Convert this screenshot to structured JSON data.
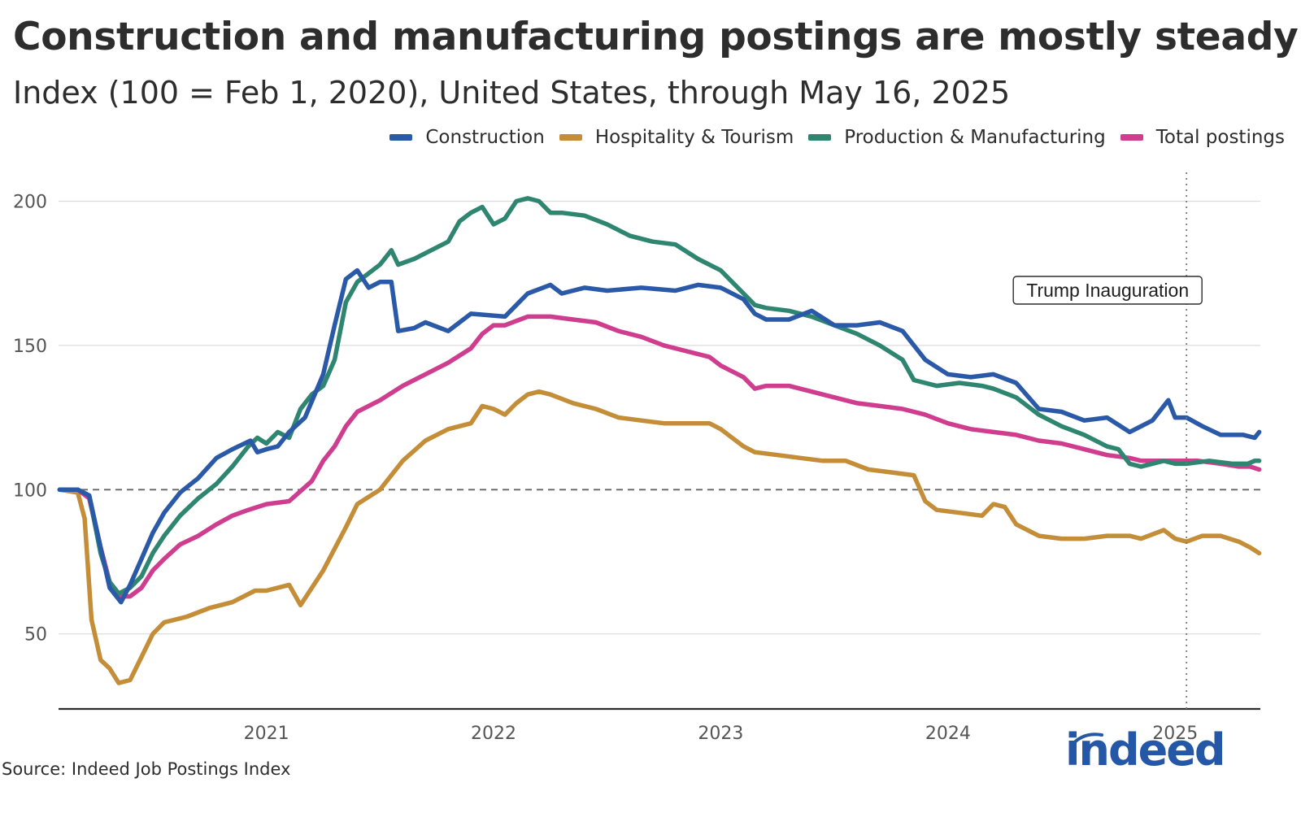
{
  "title": "Construction and manufacturing postings are mostly steady",
  "subtitle": "Index (100 = Feb 1, 2020), United States, through May 16, 2025",
  "source": "Source: Indeed Job Postings Index",
  "logo_text": "indeed",
  "chart_data": {
    "type": "line",
    "title": "Construction and manufacturing postings are mostly steady",
    "xlabel": "",
    "ylabel": "",
    "xlim": [
      2020.085,
      2025.375
    ],
    "ylim": [
      24,
      210
    ],
    "x_ticks": [
      2021,
      2022,
      2023,
      2024,
      2025
    ],
    "x_tick_labels": [
      "2021",
      "2022",
      "2023",
      "2024",
      "2025"
    ],
    "y_ticks": [
      50,
      100,
      150,
      200
    ],
    "y_tick_labels": [
      "50",
      "100",
      "150",
      "200"
    ],
    "reference_line": {
      "y": 100,
      "style": "dashed"
    },
    "annotation": {
      "x": 2025.05,
      "label": "Trump Inauguration",
      "style": "dotted"
    },
    "legend_position": "top-right",
    "series": [
      {
        "name": "Construction",
        "color": "#2a59a7",
        "points": [
          [
            2020.09,
            100
          ],
          [
            2020.17,
            100
          ],
          [
            2020.22,
            98
          ],
          [
            2020.27,
            80
          ],
          [
            2020.31,
            66
          ],
          [
            2020.36,
            61
          ],
          [
            2020.4,
            67
          ],
          [
            2020.45,
            76
          ],
          [
            2020.5,
            85
          ],
          [
            2020.55,
            92
          ],
          [
            2020.62,
            99
          ],
          [
            2020.7,
            104
          ],
          [
            2020.78,
            111
          ],
          [
            2020.85,
            114
          ],
          [
            2020.93,
            117
          ],
          [
            2020.96,
            113
          ],
          [
            2021.0,
            114
          ],
          [
            2021.05,
            115
          ],
          [
            2021.1,
            120
          ],
          [
            2021.17,
            125
          ],
          [
            2021.25,
            140
          ],
          [
            2021.3,
            157
          ],
          [
            2021.35,
            173
          ],
          [
            2021.4,
            176
          ],
          [
            2021.45,
            170
          ],
          [
            2021.5,
            172
          ],
          [
            2021.55,
            172
          ],
          [
            2021.58,
            155
          ],
          [
            2021.65,
            156
          ],
          [
            2021.7,
            158
          ],
          [
            2021.8,
            155
          ],
          [
            2021.9,
            161
          ],
          [
            2022.05,
            160
          ],
          [
            2022.15,
            168
          ],
          [
            2022.25,
            171
          ],
          [
            2022.3,
            168
          ],
          [
            2022.4,
            170
          ],
          [
            2022.5,
            169
          ],
          [
            2022.65,
            170
          ],
          [
            2022.8,
            169
          ],
          [
            2022.9,
            171
          ],
          [
            2023.0,
            170
          ],
          [
            2023.1,
            166
          ],
          [
            2023.15,
            161
          ],
          [
            2023.2,
            159
          ],
          [
            2023.3,
            159
          ],
          [
            2023.4,
            162
          ],
          [
            2023.5,
            157
          ],
          [
            2023.6,
            157
          ],
          [
            2023.7,
            158
          ],
          [
            2023.8,
            155
          ],
          [
            2023.9,
            145
          ],
          [
            2024.0,
            140
          ],
          [
            2024.1,
            139
          ],
          [
            2024.2,
            140
          ],
          [
            2024.3,
            137
          ],
          [
            2024.4,
            128
          ],
          [
            2024.5,
            127
          ],
          [
            2024.6,
            124
          ],
          [
            2024.7,
            125
          ],
          [
            2024.8,
            120
          ],
          [
            2024.9,
            124
          ],
          [
            2024.97,
            131
          ],
          [
            2025.0,
            125
          ],
          [
            2025.05,
            125
          ],
          [
            2025.12,
            122
          ],
          [
            2025.2,
            119
          ],
          [
            2025.3,
            119
          ],
          [
            2025.35,
            118
          ],
          [
            2025.37,
            120
          ]
        ]
      },
      {
        "name": "Hospitality & Tourism",
        "color": "#c48d38",
        "points": [
          [
            2020.09,
            100
          ],
          [
            2020.17,
            99
          ],
          [
            2020.2,
            90
          ],
          [
            2020.23,
            55
          ],
          [
            2020.27,
            41
          ],
          [
            2020.31,
            38
          ],
          [
            2020.35,
            33
          ],
          [
            2020.4,
            34
          ],
          [
            2020.45,
            42
          ],
          [
            2020.5,
            50
          ],
          [
            2020.55,
            54
          ],
          [
            2020.65,
            56
          ],
          [
            2020.75,
            59
          ],
          [
            2020.85,
            61
          ],
          [
            2020.95,
            65
          ],
          [
            2021.0,
            65
          ],
          [
            2021.1,
            67
          ],
          [
            2021.15,
            60
          ],
          [
            2021.25,
            72
          ],
          [
            2021.35,
            87
          ],
          [
            2021.4,
            95
          ],
          [
            2021.5,
            100
          ],
          [
            2021.6,
            110
          ],
          [
            2021.7,
            117
          ],
          [
            2021.8,
            121
          ],
          [
            2021.9,
            123
          ],
          [
            2021.95,
            129
          ],
          [
            2022.0,
            128
          ],
          [
            2022.05,
            126
          ],
          [
            2022.1,
            130
          ],
          [
            2022.15,
            133
          ],
          [
            2022.2,
            134
          ],
          [
            2022.25,
            133
          ],
          [
            2022.35,
            130
          ],
          [
            2022.45,
            128
          ],
          [
            2022.55,
            125
          ],
          [
            2022.65,
            124
          ],
          [
            2022.75,
            123
          ],
          [
            2022.85,
            123
          ],
          [
            2022.95,
            123
          ],
          [
            2023.0,
            121
          ],
          [
            2023.05,
            118
          ],
          [
            2023.1,
            115
          ],
          [
            2023.15,
            113
          ],
          [
            2023.25,
            112
          ],
          [
            2023.35,
            111
          ],
          [
            2023.45,
            110
          ],
          [
            2023.55,
            110
          ],
          [
            2023.65,
            107
          ],
          [
            2023.75,
            106
          ],
          [
            2023.85,
            105
          ],
          [
            2023.9,
            96
          ],
          [
            2023.95,
            93
          ],
          [
            2024.05,
            92
          ],
          [
            2024.15,
            91
          ],
          [
            2024.2,
            95
          ],
          [
            2024.25,
            94
          ],
          [
            2024.3,
            88
          ],
          [
            2024.4,
            84
          ],
          [
            2024.5,
            83
          ],
          [
            2024.6,
            83
          ],
          [
            2024.7,
            84
          ],
          [
            2024.8,
            84
          ],
          [
            2024.85,
            83
          ],
          [
            2024.95,
            86
          ],
          [
            2025.0,
            83
          ],
          [
            2025.05,
            82
          ],
          [
            2025.12,
            84
          ],
          [
            2025.2,
            84
          ],
          [
            2025.28,
            82
          ],
          [
            2025.33,
            80
          ],
          [
            2025.37,
            78
          ]
        ]
      },
      {
        "name": "Production & Manufacturing",
        "color": "#2e8570",
        "points": [
          [
            2020.09,
            100
          ],
          [
            2020.17,
            100
          ],
          [
            2020.22,
            98
          ],
          [
            2020.27,
            78
          ],
          [
            2020.31,
            68
          ],
          [
            2020.35,
            64
          ],
          [
            2020.4,
            66
          ],
          [
            2020.45,
            70
          ],
          [
            2020.5,
            78
          ],
          [
            2020.55,
            84
          ],
          [
            2020.62,
            91
          ],
          [
            2020.7,
            97
          ],
          [
            2020.78,
            102
          ],
          [
            2020.85,
            108
          ],
          [
            2020.92,
            115
          ],
          [
            2020.96,
            118
          ],
          [
            2021.0,
            116
          ],
          [
            2021.05,
            120
          ],
          [
            2021.1,
            118
          ],
          [
            2021.15,
            128
          ],
          [
            2021.2,
            133
          ],
          [
            2021.25,
            136
          ],
          [
            2021.3,
            145
          ],
          [
            2021.35,
            165
          ],
          [
            2021.4,
            172
          ],
          [
            2021.45,
            175
          ],
          [
            2021.5,
            178
          ],
          [
            2021.55,
            183
          ],
          [
            2021.58,
            178
          ],
          [
            2021.65,
            180
          ],
          [
            2021.7,
            182
          ],
          [
            2021.8,
            186
          ],
          [
            2021.85,
            193
          ],
          [
            2021.9,
            196
          ],
          [
            2021.95,
            198
          ],
          [
            2022.0,
            192
          ],
          [
            2022.05,
            194
          ],
          [
            2022.1,
            200
          ],
          [
            2022.15,
            201
          ],
          [
            2022.2,
            200
          ],
          [
            2022.25,
            196
          ],
          [
            2022.3,
            196
          ],
          [
            2022.4,
            195
          ],
          [
            2022.5,
            192
          ],
          [
            2022.6,
            188
          ],
          [
            2022.7,
            186
          ],
          [
            2022.8,
            185
          ],
          [
            2022.9,
            180
          ],
          [
            2023.0,
            176
          ],
          [
            2023.05,
            172
          ],
          [
            2023.1,
            168
          ],
          [
            2023.15,
            164
          ],
          [
            2023.2,
            163
          ],
          [
            2023.3,
            162
          ],
          [
            2023.4,
            160
          ],
          [
            2023.5,
            157
          ],
          [
            2023.6,
            154
          ],
          [
            2023.7,
            150
          ],
          [
            2023.8,
            145
          ],
          [
            2023.85,
            138
          ],
          [
            2023.95,
            136
          ],
          [
            2024.05,
            137
          ],
          [
            2024.15,
            136
          ],
          [
            2024.2,
            135
          ],
          [
            2024.3,
            132
          ],
          [
            2024.4,
            126
          ],
          [
            2024.5,
            122
          ],
          [
            2024.6,
            119
          ],
          [
            2024.7,
            115
          ],
          [
            2024.75,
            114
          ],
          [
            2024.8,
            109
          ],
          [
            2024.85,
            108
          ],
          [
            2024.95,
            110
          ],
          [
            2025.0,
            109
          ],
          [
            2025.05,
            109
          ],
          [
            2025.15,
            110
          ],
          [
            2025.25,
            109
          ],
          [
            2025.32,
            109
          ],
          [
            2025.35,
            110
          ],
          [
            2025.37,
            110
          ]
        ]
      },
      {
        "name": "Total postings",
        "color": "#cf3d8f",
        "points": [
          [
            2020.09,
            100
          ],
          [
            2020.17,
            100
          ],
          [
            2020.22,
            97
          ],
          [
            2020.27,
            80
          ],
          [
            2020.31,
            68
          ],
          [
            2020.35,
            63
          ],
          [
            2020.4,
            63
          ],
          [
            2020.45,
            66
          ],
          [
            2020.5,
            72
          ],
          [
            2020.55,
            76
          ],
          [
            2020.62,
            81
          ],
          [
            2020.7,
            84
          ],
          [
            2020.78,
            88
          ],
          [
            2020.85,
            91
          ],
          [
            2020.92,
            93
          ],
          [
            2021.0,
            95
          ],
          [
            2021.1,
            96
          ],
          [
            2021.2,
            103
          ],
          [
            2021.25,
            110
          ],
          [
            2021.3,
            115
          ],
          [
            2021.35,
            122
          ],
          [
            2021.4,
            127
          ],
          [
            2021.5,
            131
          ],
          [
            2021.6,
            136
          ],
          [
            2021.7,
            140
          ],
          [
            2021.8,
            144
          ],
          [
            2021.9,
            149
          ],
          [
            2021.95,
            154
          ],
          [
            2022.0,
            157
          ],
          [
            2022.05,
            157
          ],
          [
            2022.15,
            160
          ],
          [
            2022.25,
            160
          ],
          [
            2022.35,
            159
          ],
          [
            2022.45,
            158
          ],
          [
            2022.55,
            155
          ],
          [
            2022.65,
            153
          ],
          [
            2022.75,
            150
          ],
          [
            2022.85,
            148
          ],
          [
            2022.95,
            146
          ],
          [
            2023.0,
            143
          ],
          [
            2023.05,
            141
          ],
          [
            2023.1,
            139
          ],
          [
            2023.15,
            135
          ],
          [
            2023.2,
            136
          ],
          [
            2023.3,
            136
          ],
          [
            2023.4,
            134
          ],
          [
            2023.5,
            132
          ],
          [
            2023.6,
            130
          ],
          [
            2023.7,
            129
          ],
          [
            2023.8,
            128
          ],
          [
            2023.9,
            126
          ],
          [
            2024.0,
            123
          ],
          [
            2024.1,
            121
          ],
          [
            2024.2,
            120
          ],
          [
            2024.3,
            119
          ],
          [
            2024.4,
            117
          ],
          [
            2024.5,
            116
          ],
          [
            2024.6,
            114
          ],
          [
            2024.7,
            112
          ],
          [
            2024.8,
            111
          ],
          [
            2024.85,
            110
          ],
          [
            2024.95,
            110
          ],
          [
            2025.0,
            110
          ],
          [
            2025.1,
            110
          ],
          [
            2025.2,
            109
          ],
          [
            2025.28,
            108
          ],
          [
            2025.33,
            108
          ],
          [
            2025.37,
            107
          ]
        ]
      }
    ]
  }
}
